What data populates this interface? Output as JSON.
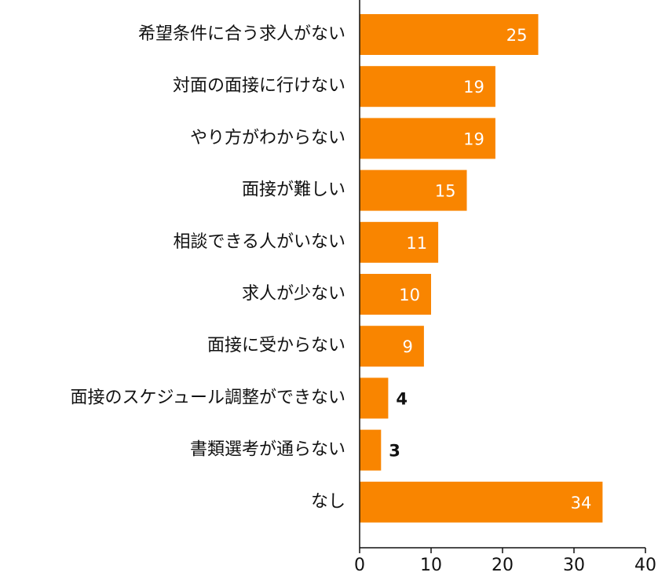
{
  "chart_data": {
    "type": "barh",
    "categories": [
      "希望条件に合う求人がない",
      "対面の面接に行けない",
      "やり方がわからない",
      "面接が難しい",
      "相談できる人がいない",
      "求人が少ない",
      "面接に受からない",
      "面接のスケジュール調整ができない",
      "書類選考が通らない",
      "なし"
    ],
    "values": [
      25,
      19,
      19,
      15,
      11,
      10,
      9,
      4,
      3,
      34
    ],
    "color": "#f98500",
    "xlim": [
      0,
      40
    ],
    "xticks": [
      0,
      10,
      20,
      30,
      40
    ]
  }
}
